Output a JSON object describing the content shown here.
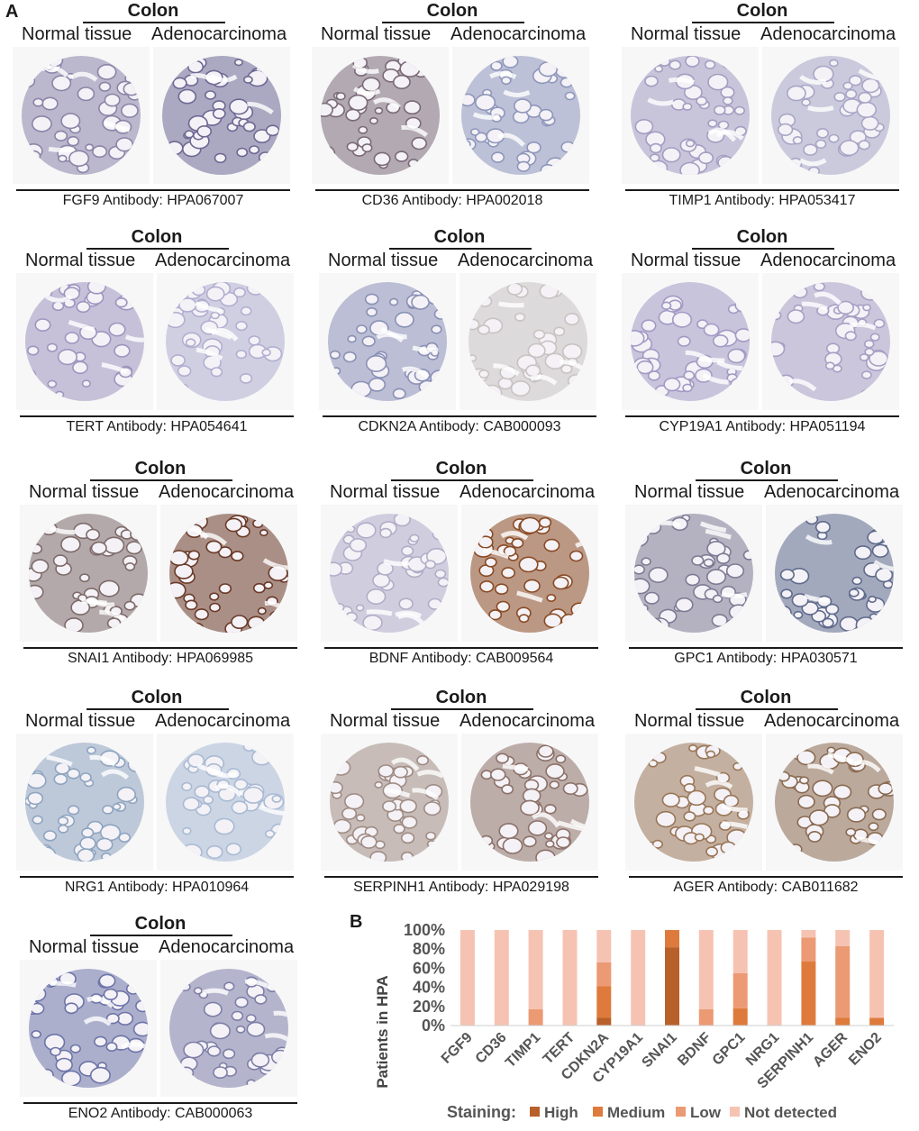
{
  "panel_a_letter": "A",
  "panel_b_letter": "B",
  "tissue_header": "Colon",
  "normal_label": "Normal tissue",
  "tumor_label": "Adenocarcinoma",
  "colors": {
    "high": "#b8602a",
    "medium": "#de7b3c",
    "low": "#eb9a74",
    "not_detected": "#f6c3b2"
  },
  "antibodies": [
    {
      "caption": "FGF9 Antibody: HPA067007",
      "n_color": "#8b84a8",
      "a_color": "#6e6894"
    },
    {
      "caption": "CD36 Antibody: HPA002018",
      "n_color": "#7a6a78",
      "a_color": "#8e96bb"
    },
    {
      "caption": "TIMP1 Antibody: HPA053417",
      "n_color": "#a39dc2",
      "a_color": "#a8a5c6"
    },
    {
      "caption": "TERT Antibody: HPA054641",
      "n_color": "#9e95bf",
      "a_color": "#b1aed0"
    },
    {
      "caption": "CDKN2A Antibody: CAB000093",
      "n_color": "#8a90b6",
      "a_color": "#c9c2c2"
    },
    {
      "caption": "CYP19A1 Antibody: HPA051194",
      "n_color": "#a29ac4",
      "a_color": "#a79fc5"
    },
    {
      "caption": "SNAI1 Antibody: HPA069985",
      "n_color": "#7e6a6a",
      "a_color": "#6b3a28"
    },
    {
      "caption": "BDNF Antibody: CAB009564",
      "n_color": "#b1adc8",
      "a_color": "#8a4a24"
    },
    {
      "caption": "GPC1 Antibody: HPA030571",
      "n_color": "#7d7a94",
      "a_color": "#5f6a8c"
    },
    {
      "caption": "NRG1 Antibody: HPA010964",
      "n_color": "#8ea4c0",
      "a_color": "#a9bad4"
    },
    {
      "caption": "SERPINH1 Antibody: HPA029198",
      "n_color": "#a08c84",
      "a_color": "#8d7168"
    },
    {
      "caption": "AGER Antibody: CAB011682",
      "n_color": "#9a7658",
      "a_color": "#8a6a50"
    },
    {
      "caption": "ENO2 Antibody: CAB000063",
      "n_color": "#6d74a8",
      "a_color": "#7e7fa8"
    }
  ],
  "chart_data": {
    "type": "bar",
    "stacked": true,
    "categories": [
      "FGF9",
      "CD36",
      "TIMP1",
      "TERT",
      "CDKN2A",
      "CYP19A1",
      "SNAI1",
      "BDNF",
      "GPC1",
      "NRG1",
      "SERPINH1",
      "AGER",
      "ENO2"
    ],
    "series": [
      {
        "name": "High",
        "values": [
          0,
          0,
          0,
          0,
          8,
          0,
          82,
          0,
          0,
          0,
          0,
          0,
          0
        ]
      },
      {
        "name": "Medium",
        "values": [
          0,
          0,
          0,
          0,
          33,
          0,
          18,
          0,
          18,
          0,
          67,
          8,
          8
        ]
      },
      {
        "name": "Low",
        "values": [
          0,
          0,
          17,
          0,
          25,
          0,
          0,
          17,
          37,
          0,
          25,
          75,
          0
        ]
      },
      {
        "name": "Not detected",
        "values": [
          100,
          100,
          83,
          100,
          34,
          100,
          0,
          83,
          45,
          100,
          8,
          17,
          92
        ]
      }
    ],
    "ylabel": "Patients in HPA",
    "ylim": [
      0,
      100
    ],
    "yticks": [
      "0%",
      "20%",
      "40%",
      "60%",
      "80%",
      "100%"
    ],
    "legend_title": "Staining:",
    "legend_position": "bottom"
  }
}
